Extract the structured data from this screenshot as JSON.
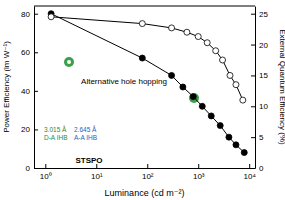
{
  "chart_data": {
    "type": "line",
    "x_label": "Luminance (cd m⁻²)",
    "y_label": "Power Efficiency (lm W⁻¹)",
    "y2_label": "External Quantum Efficiency (%)",
    "log": "x",
    "grid": false,
    "xlim": [
      0.6,
      13000
    ],
    "xticks": [
      {
        "value": 1,
        "label": "10⁰"
      },
      {
        "value": 10,
        "label": "10¹"
      },
      {
        "value": 100,
        "label": "10²"
      },
      {
        "value": 1000,
        "label": "10³"
      },
      {
        "value": 10000,
        "label": "10⁴"
      }
    ],
    "ylim": [
      0,
      84
    ],
    "yticks": [
      0,
      20,
      40,
      60,
      80
    ],
    "y2lim": [
      0,
      26.25
    ],
    "y2ticks": [
      0,
      5,
      10,
      15,
      20,
      25
    ],
    "annotations": [
      "Alternative hole hopping",
      "STSPO",
      "3.015 Å",
      "D-A IHB",
      "2.645 Å",
      "A-A IHB"
    ],
    "series": [
      {
        "color": "#000000",
        "marker": "circle",
        "line_style": "solid",
        "x": [
          1.3,
          80,
          300,
          500,
          800,
          1200,
          1800,
          2700,
          4000,
          5500,
          8000
        ],
        "values": [
          80,
          57,
          48,
          42,
          37,
          32,
          27,
          22,
          16,
          12,
          8
        ]
      },
      {
        "color": "#000000",
        "marker": "open-circle",
        "line_style": "solid",
        "axis": "y2",
        "x": [
          1.3,
          80,
          300,
          600,
          1000,
          1500,
          2200,
          3000,
          4200,
          5500,
          7500
        ],
        "values": [
          24.5,
          23.4,
          22.7,
          22,
          21.3,
          20.3,
          19,
          17.5,
          15,
          13.5,
          11
        ]
      }
    ]
  }
}
